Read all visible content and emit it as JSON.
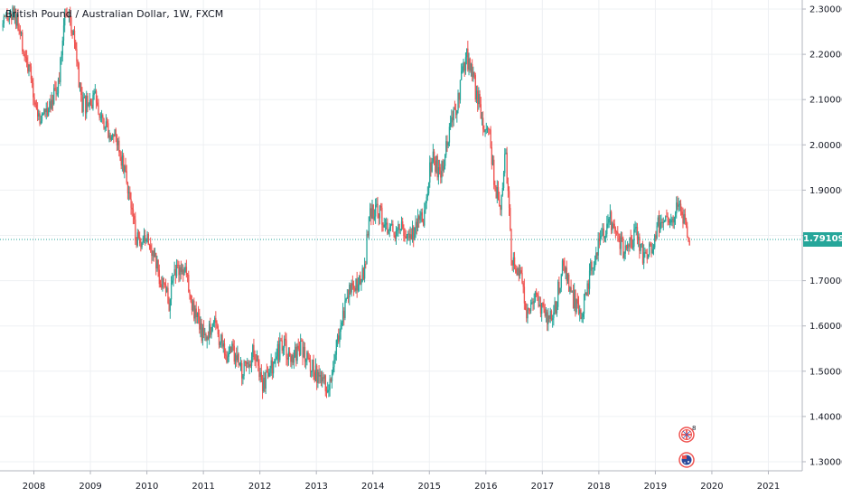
{
  "title": "British Pound / Australian Dollar, 1W, FXCM",
  "colors": {
    "up": "#26a69a",
    "down": "#ef5350",
    "grid": "#eef0f3",
    "axis": "#b2b5be",
    "price_line": "#26a69a",
    "price_badge": "#26a69a"
  },
  "icons": [
    "gb-flag-icon",
    "au-flag-icon"
  ],
  "chart_data": {
    "type": "candlestick",
    "title": "British Pound / Australian Dollar, 1W, FXCM",
    "timeframe": "1W",
    "ylim": [
      1.28,
      2.32
    ],
    "xlim": [
      2007.4,
      2021.6
    ],
    "y_ticks": [
      "1.30000",
      "1.40000",
      "1.50000",
      "1.60000",
      "1.70000",
      "1.80000",
      "1.90000",
      "2.00000",
      "2.10000",
      "2.20000",
      "2.30000"
    ],
    "x_ticks": [
      "2008",
      "2009",
      "2010",
      "2011",
      "2012",
      "2013",
      "2014",
      "2015",
      "2016",
      "2017",
      "2018",
      "2019",
      "2020",
      "2021"
    ],
    "current_price": "1.79109",
    "close_path": [
      [
        2007.45,
        2.26
      ],
      [
        2007.65,
        2.29
      ],
      [
        2007.9,
        2.17
      ],
      [
        2008.1,
        2.05
      ],
      [
        2008.45,
        2.14
      ],
      [
        2008.55,
        2.31
      ],
      [
        2008.7,
        2.24
      ],
      [
        2008.85,
        2.08
      ],
      [
        2009.1,
        2.1
      ],
      [
        2009.3,
        2.04
      ],
      [
        2009.5,
        2.0
      ],
      [
        2009.65,
        1.92
      ],
      [
        2009.8,
        1.8
      ],
      [
        2009.9,
        1.76
      ],
      [
        2010.0,
        1.81
      ],
      [
        2010.2,
        1.72
      ],
      [
        2010.4,
        1.65
      ],
      [
        2010.5,
        1.73
      ],
      [
        2010.7,
        1.72
      ],
      [
        2010.85,
        1.62
      ],
      [
        2011.0,
        1.58
      ],
      [
        2011.2,
        1.61
      ],
      [
        2011.4,
        1.53
      ],
      [
        2011.5,
        1.55
      ],
      [
        2011.7,
        1.5
      ],
      [
        2011.9,
        1.55
      ],
      [
        2012.05,
        1.47
      ],
      [
        2012.25,
        1.52
      ],
      [
        2012.4,
        1.56
      ],
      [
        2012.55,
        1.52
      ],
      [
        2012.7,
        1.55
      ],
      [
        2012.85,
        1.53
      ],
      [
        2013.0,
        1.49
      ],
      [
        2013.2,
        1.46
      ],
      [
        2013.35,
        1.56
      ],
      [
        2013.55,
        1.67
      ],
      [
        2013.7,
        1.69
      ],
      [
        2013.85,
        1.73
      ],
      [
        2013.95,
        1.85
      ],
      [
        2014.1,
        1.86
      ],
      [
        2014.3,
        1.8
      ],
      [
        2014.5,
        1.83
      ],
      [
        2014.65,
        1.78
      ],
      [
        2014.8,
        1.85
      ],
      [
        2014.9,
        1.84
      ],
      [
        2015.05,
        1.98
      ],
      [
        2015.2,
        1.93
      ],
      [
        2015.35,
        2.03
      ],
      [
        2015.5,
        2.1
      ],
      [
        2015.65,
        2.2
      ],
      [
        2015.8,
        2.13
      ],
      [
        2015.95,
        2.05
      ],
      [
        2016.05,
        2.05
      ],
      [
        2016.15,
        1.91
      ],
      [
        2016.25,
        1.86
      ],
      [
        2016.35,
        1.99
      ],
      [
        2016.45,
        1.76
      ],
      [
        2016.6,
        1.72
      ],
      [
        2016.75,
        1.61
      ],
      [
        2016.9,
        1.68
      ],
      [
        2017.05,
        1.61
      ],
      [
        2017.2,
        1.62
      ],
      [
        2017.35,
        1.73
      ],
      [
        2017.55,
        1.66
      ],
      [
        2017.7,
        1.63
      ],
      [
        2017.85,
        1.72
      ],
      [
        2018.0,
        1.78
      ],
      [
        2018.2,
        1.83
      ],
      [
        2018.35,
        1.78
      ],
      [
        2018.5,
        1.76
      ],
      [
        2018.65,
        1.81
      ],
      [
        2018.8,
        1.75
      ],
      [
        2018.95,
        1.78
      ],
      [
        2019.1,
        1.84
      ],
      [
        2019.25,
        1.82
      ],
      [
        2019.4,
        1.87
      ],
      [
        2019.55,
        1.81
      ],
      [
        2019.62,
        1.79
      ]
    ]
  }
}
